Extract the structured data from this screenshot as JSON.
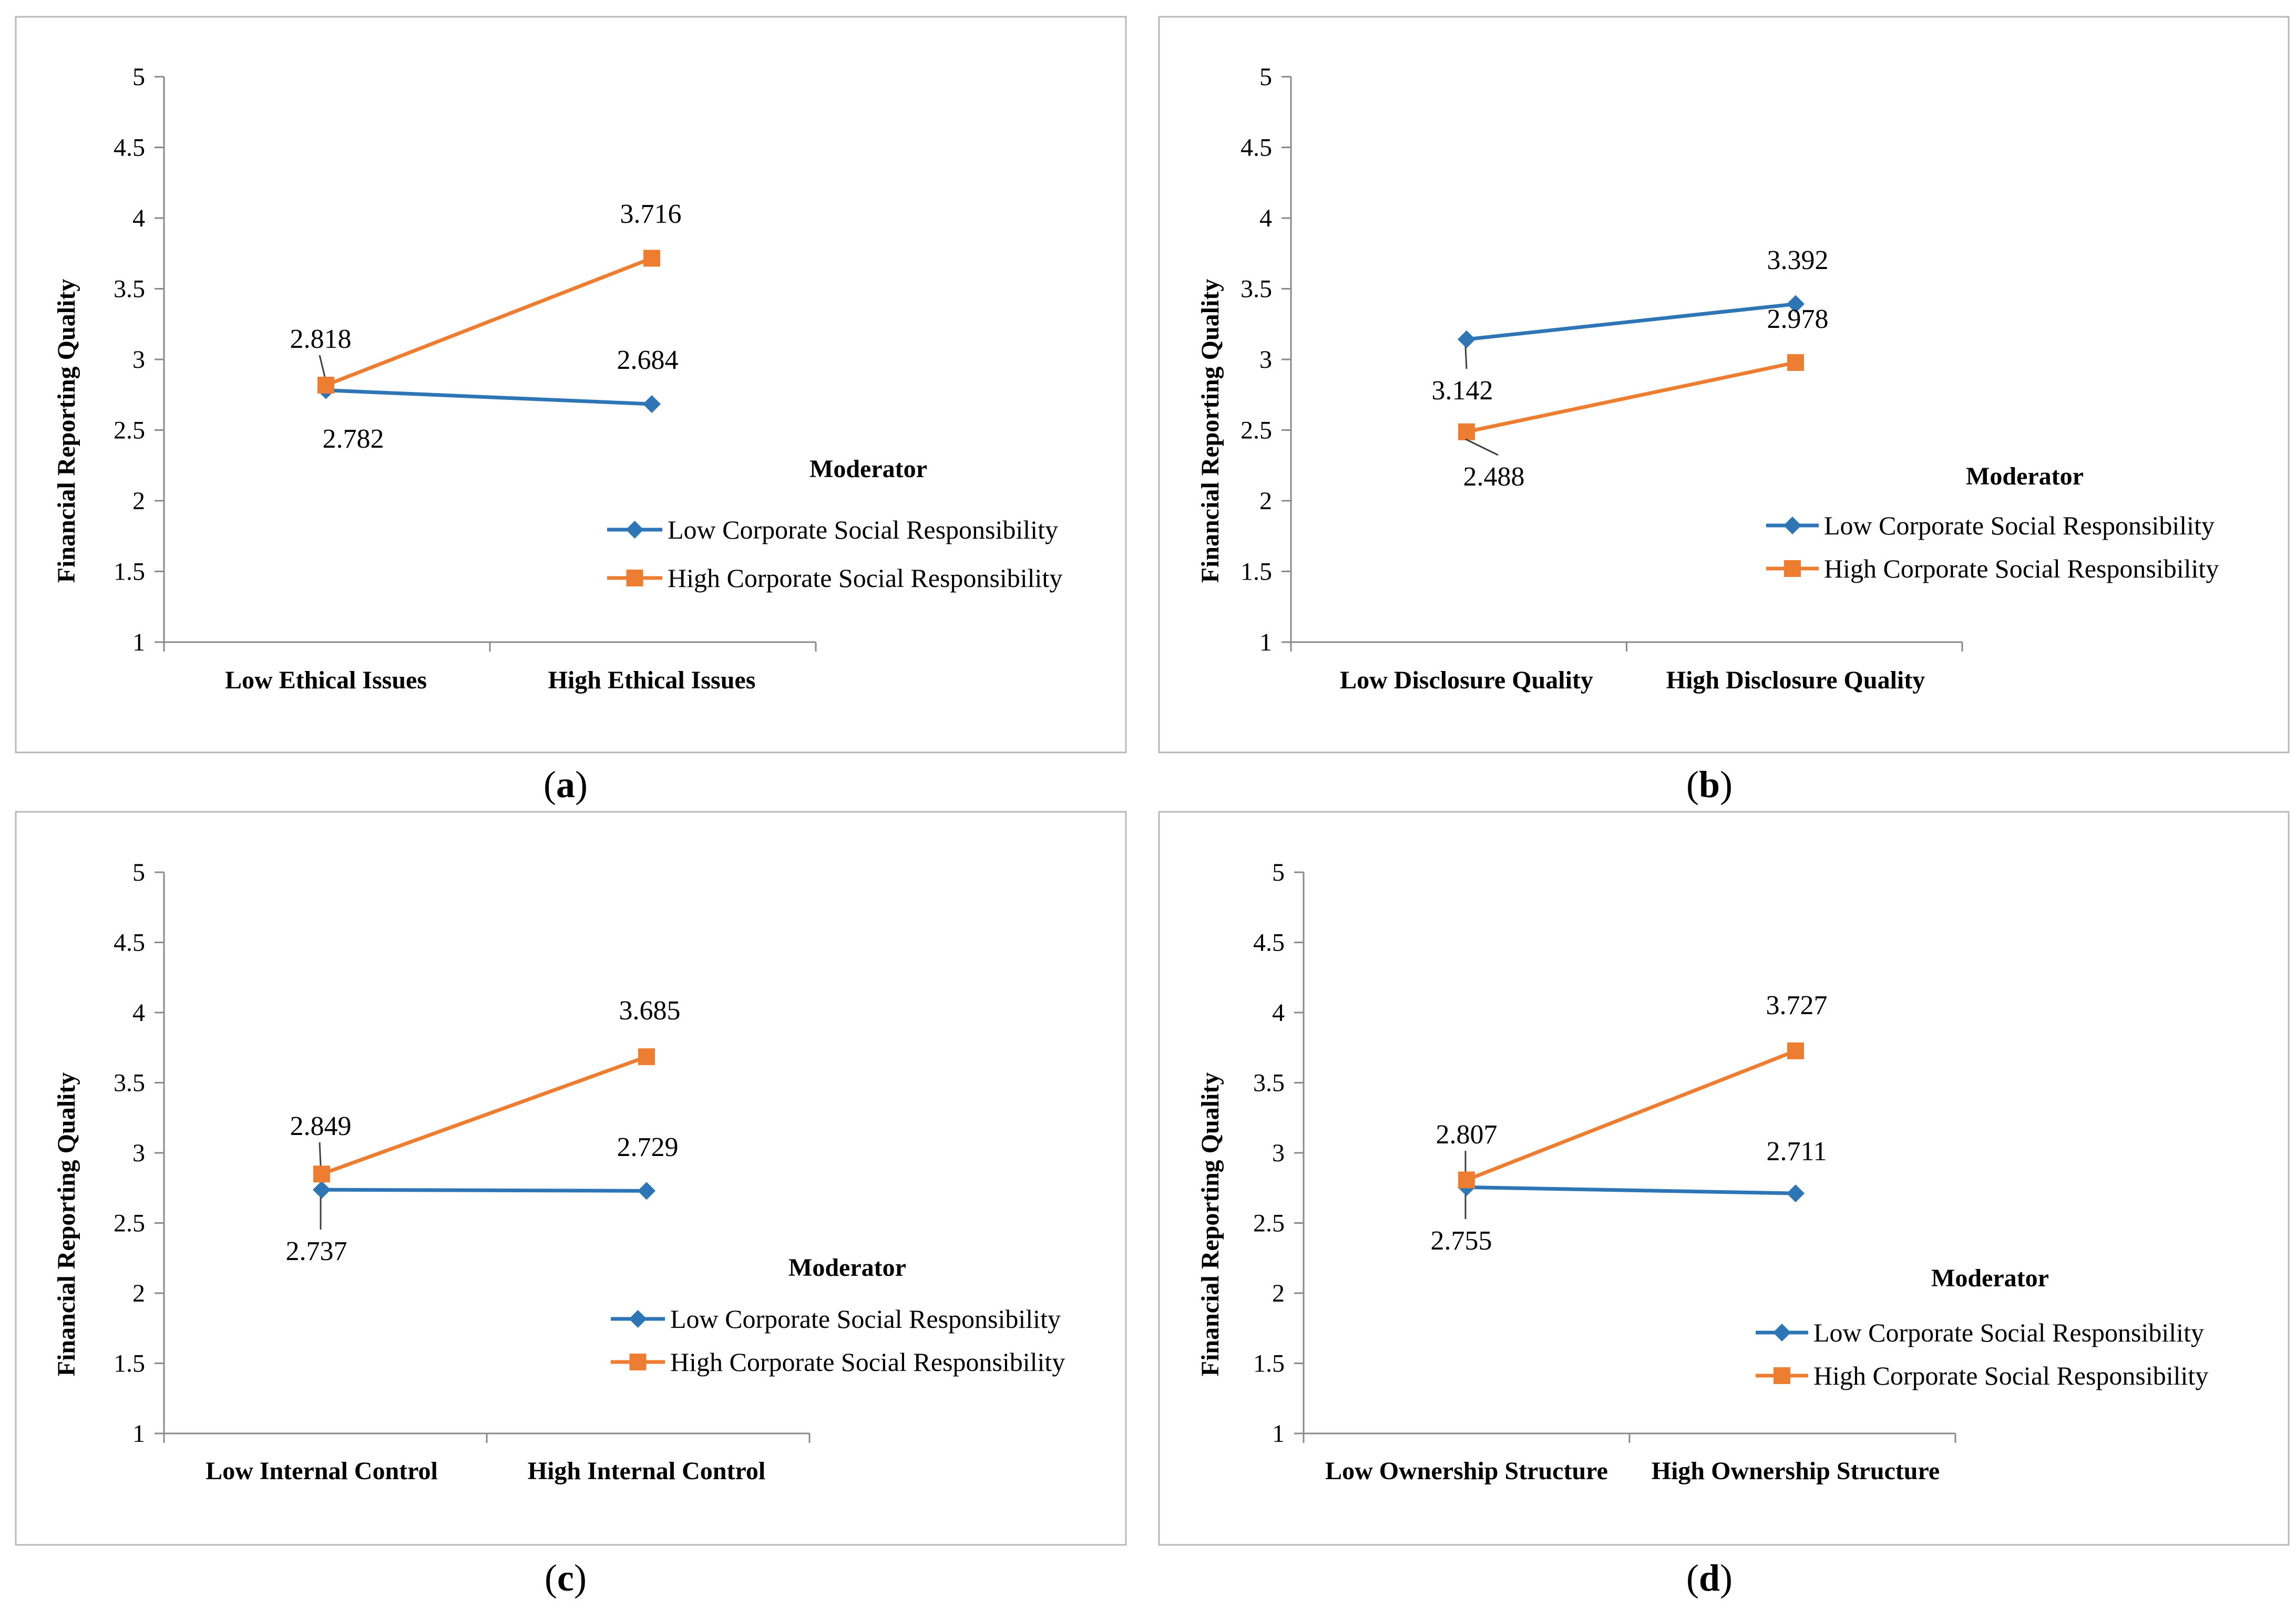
{
  "figure": {
    "captions": [
      "a",
      "b",
      "c",
      "d"
    ]
  },
  "chart_data": [
    {
      "type": "line",
      "panel": "a",
      "ylabel": "Financial Reporting Quality",
      "xlabel": "",
      "categories": [
        "Low Ethical Issues",
        "High Ethical Issues"
      ],
      "ylim": [
        1,
        5
      ],
      "yticks": [
        "1",
        "1.5",
        "2",
        "2.5",
        "3",
        "3.5",
        "4",
        "4.5",
        "5"
      ],
      "legend_title": "Moderator",
      "series": [
        {
          "name": "Low Corporate Social Responsibility",
          "color": "#2E75B6",
          "marker": "diamond",
          "values": [
            2.782,
            2.684
          ],
          "labels": [
            "2.782",
            "2.684"
          ]
        },
        {
          "name": "High Corporate Social Responsibility",
          "color": "#ED7D31",
          "marker": "square",
          "values": [
            2.818,
            3.716
          ],
          "labels": [
            "2.818",
            "3.716"
          ]
        }
      ]
    },
    {
      "type": "line",
      "panel": "b",
      "ylabel": "Financial Reporting Quality",
      "xlabel": "",
      "categories": [
        "Low Disclosure Quality",
        "High Disclosure Quality"
      ],
      "ylim": [
        1,
        5
      ],
      "yticks": [
        "1",
        "1.5",
        "2",
        "2.5",
        "3",
        "3.5",
        "4",
        "4.5",
        "5"
      ],
      "legend_title": "Moderator",
      "series": [
        {
          "name": "Low Corporate Social Responsibility",
          "color": "#2E75B6",
          "marker": "diamond",
          "values": [
            3.142,
            3.392
          ],
          "labels": [
            "3.142",
            "3.392"
          ]
        },
        {
          "name": "High Corporate Social Responsibility",
          "color": "#ED7D31",
          "marker": "square",
          "values": [
            2.488,
            2.978
          ],
          "labels": [
            "2.488",
            "2.978"
          ]
        }
      ]
    },
    {
      "type": "line",
      "panel": "c",
      "ylabel": "Financial Reporting Quality",
      "xlabel": "",
      "categories": [
        "Low Internal Control",
        "High Internal Control"
      ],
      "ylim": [
        1,
        5
      ],
      "yticks": [
        "1",
        "1.5",
        "2",
        "2.5",
        "3",
        "3.5",
        "4",
        "4.5",
        "5"
      ],
      "legend_title": "Moderator",
      "series": [
        {
          "name": "Low Corporate Social Responsibility",
          "color": "#2E75B6",
          "marker": "diamond",
          "values": [
            2.737,
            2.729
          ],
          "labels": [
            "2.737",
            "2.729"
          ]
        },
        {
          "name": "High Corporate Social Responsibility",
          "color": "#ED7D31",
          "marker": "square",
          "values": [
            2.849,
            3.685
          ],
          "labels": [
            "2.849",
            "3.685"
          ]
        }
      ]
    },
    {
      "type": "line",
      "panel": "d",
      "ylabel": "Financial Reporting Quality",
      "xlabel": "",
      "categories": [
        "Low Ownership Structure",
        "High Ownership Structure"
      ],
      "ylim": [
        1,
        5
      ],
      "yticks": [
        "1",
        "1.5",
        "2",
        "2.5",
        "3",
        "3.5",
        "4",
        "4.5",
        "5"
      ],
      "legend_title": "Moderator",
      "series": [
        {
          "name": "Low Corporate Social Responsibility",
          "color": "#2E75B6",
          "marker": "diamond",
          "values": [
            2.755,
            2.711
          ],
          "labels": [
            "2.755",
            "2.711"
          ]
        },
        {
          "name": "High Corporate Social Responsibility",
          "color": "#ED7D31",
          "marker": "square",
          "values": [
            2.807,
            3.727
          ],
          "labels": [
            "2.807",
            "3.727"
          ]
        }
      ]
    }
  ]
}
